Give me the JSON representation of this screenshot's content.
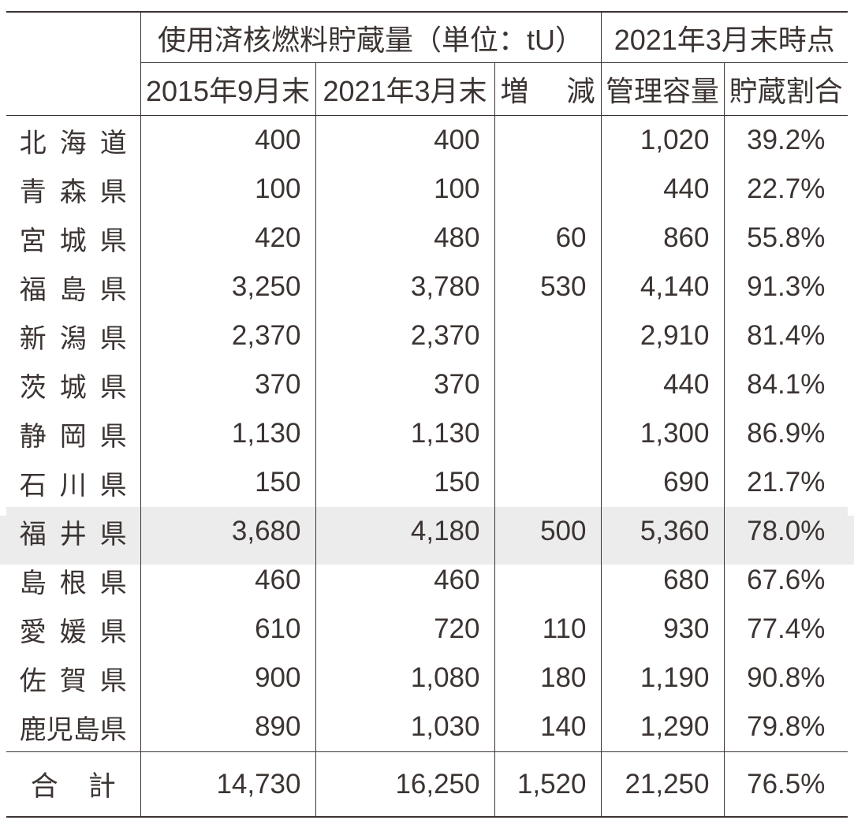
{
  "chart_data": {
    "type": "table",
    "group_headers": [
      "使用済核燃料貯蔵量（単位：tU）",
      "2021年3月末時点"
    ],
    "column_headers": [
      "2015年9月末",
      "2021年3月末",
      "増減",
      "管理容量",
      "貯蔵割合"
    ],
    "rows": [
      [
        "北海道",
        "400",
        "400",
        "",
        "1,020",
        "39.2%"
      ],
      [
        "青森県",
        "100",
        "100",
        "",
        "440",
        "22.7%"
      ],
      [
        "宮城県",
        "420",
        "480",
        "60",
        "860",
        "55.8%"
      ],
      [
        "福島県",
        "3,250",
        "3,780",
        "530",
        "4,140",
        "91.3%"
      ],
      [
        "新潟県",
        "2,370",
        "2,370",
        "",
        "2,910",
        "81.4%"
      ],
      [
        "茨城県",
        "370",
        "370",
        "",
        "440",
        "84.1%"
      ],
      [
        "静岡県",
        "1,130",
        "1,130",
        "",
        "1,300",
        "86.9%"
      ],
      [
        "石川県",
        "150",
        "150",
        "",
        "690",
        "21.7%"
      ],
      [
        "福井県",
        "3,680",
        "4,180",
        "500",
        "5,360",
        "78.0%"
      ],
      [
        "島根県",
        "460",
        "460",
        "",
        "680",
        "67.6%"
      ],
      [
        "愛媛県",
        "610",
        "720",
        "110",
        "930",
        "77.4%"
      ],
      [
        "佐賀県",
        "900",
        "1,080",
        "180",
        "1,190",
        "90.8%"
      ],
      [
        "鹿児島県",
        "890",
        "1,030",
        "140",
        "1,290",
        "79.8%"
      ]
    ],
    "total_row": [
      "合計",
      "14,730",
      "16,250",
      "1,520",
      "21,250",
      "76.5%"
    ],
    "highlight_row_index": 8,
    "colors": {
      "ink": "#3b3432",
      "highlight_bg": "#ececec"
    }
  }
}
